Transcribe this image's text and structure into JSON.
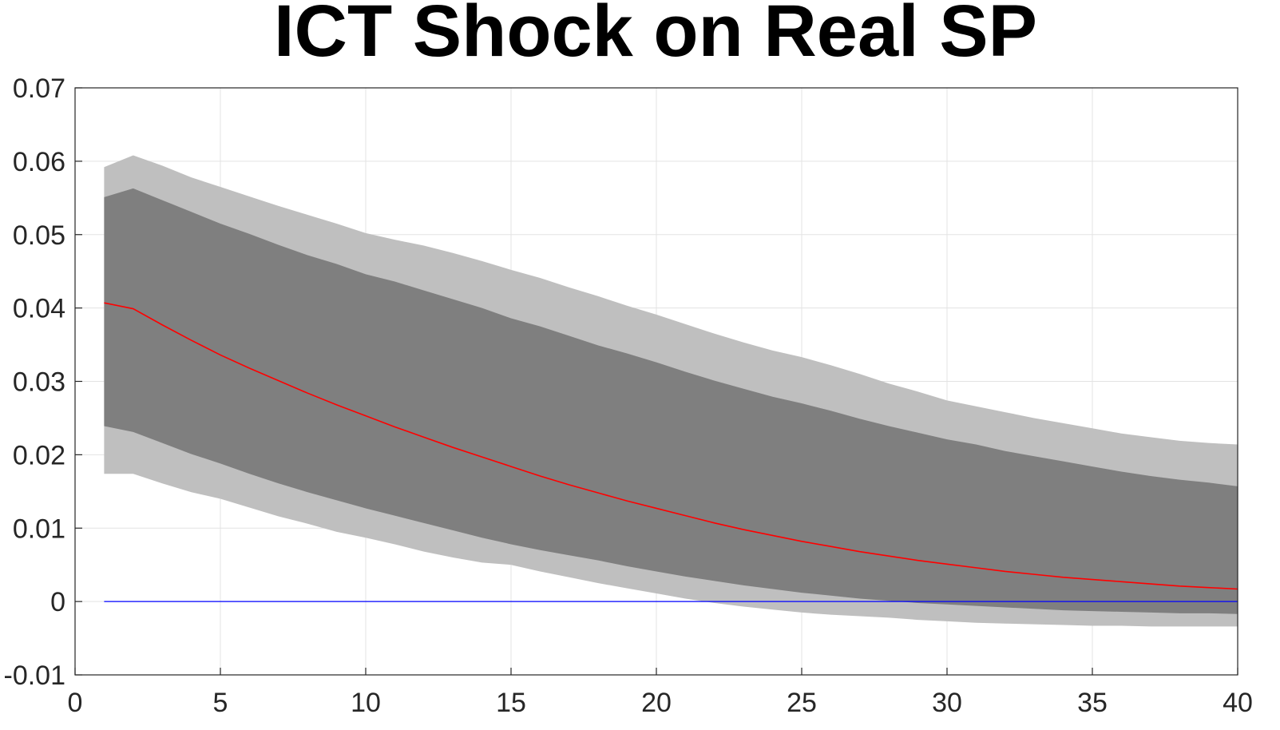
{
  "chart_data": {
    "type": "area",
    "title": "ICT Shock on Real SP",
    "xlabel": "",
    "ylabel": "",
    "xlim": [
      0,
      40
    ],
    "ylim": [
      -0.01,
      0.07
    ],
    "grid": true,
    "x_ticks": [
      0,
      5,
      10,
      15,
      20,
      25,
      30,
      35,
      40
    ],
    "x_tick_labels": [
      "0",
      "5",
      "10",
      "15",
      "20",
      "25",
      "30",
      "35",
      "40"
    ],
    "y_ticks": [
      -0.01,
      0,
      0.01,
      0.02,
      0.03,
      0.04,
      0.05,
      0.06,
      0.07
    ],
    "y_tick_labels": [
      "-0.01",
      "0",
      "0.01",
      "0.02",
      "0.03",
      "0.04",
      "0.05",
      "0.06",
      "0.07"
    ],
    "colors": {
      "outer_band": "#bfbfbf",
      "inner_band": "#7f7f7f",
      "median": "#ff0000",
      "zero_line": "#0000ff",
      "grid": "#e3e3e3",
      "axis": "#262626"
    },
    "x": [
      1,
      2,
      3,
      4,
      5,
      6,
      7,
      8,
      9,
      10,
      11,
      12,
      13,
      14,
      15,
      16,
      17,
      18,
      19,
      20,
      21,
      22,
      23,
      24,
      25,
      26,
      27,
      28,
      29,
      30,
      31,
      32,
      33,
      34,
      35,
      36,
      37,
      38,
      39,
      40
    ],
    "series": [
      {
        "role": "outer_upper",
        "values": [
          0.0592,
          0.0608,
          0.0594,
          0.0578,
          0.0565,
          0.0552,
          0.0539,
          0.0527,
          0.0515,
          0.0502,
          0.0493,
          0.0485,
          0.0475,
          0.0464,
          0.0452,
          0.0441,
          0.0428,
          0.0416,
          0.0403,
          0.0391,
          0.0378,
          0.0365,
          0.0353,
          0.0342,
          0.0333,
          0.0322,
          0.031,
          0.0297,
          0.0286,
          0.0274,
          0.0266,
          0.0258,
          0.025,
          0.0243,
          0.0236,
          0.0229,
          0.0224,
          0.0219,
          0.0216,
          0.0214
        ]
      },
      {
        "role": "inner_upper",
        "values": [
          0.0551,
          0.0563,
          0.0547,
          0.0531,
          0.0515,
          0.0501,
          0.0486,
          0.0472,
          0.046,
          0.0446,
          0.0436,
          0.0424,
          0.0412,
          0.04,
          0.0386,
          0.0375,
          0.0362,
          0.0349,
          0.0338,
          0.0326,
          0.0313,
          0.0301,
          0.029,
          0.0279,
          0.027,
          0.026,
          0.0249,
          0.0239,
          0.023,
          0.0221,
          0.0214,
          0.0205,
          0.0198,
          0.0191,
          0.0184,
          0.0177,
          0.0171,
          0.0166,
          0.0162,
          0.0157
        ]
      },
      {
        "role": "median",
        "values": [
          0.0407,
          0.0399,
          0.0377,
          0.0356,
          0.0336,
          0.0318,
          0.0301,
          0.0284,
          0.0268,
          0.0253,
          0.0238,
          0.0224,
          0.021,
          0.0197,
          0.0184,
          0.0171,
          0.0159,
          0.0148,
          0.0137,
          0.0127,
          0.0117,
          0.0107,
          0.0098,
          0.009,
          0.0082,
          0.0075,
          0.0068,
          0.0062,
          0.0056,
          0.0051,
          0.0046,
          0.0041,
          0.0037,
          0.0033,
          0.003,
          0.0027,
          0.0024,
          0.0021,
          0.0019,
          0.0017
        ]
      },
      {
        "role": "inner_lower",
        "values": [
          0.0239,
          0.0231,
          0.0216,
          0.0201,
          0.0188,
          0.0174,
          0.0161,
          0.0149,
          0.0138,
          0.0127,
          0.0117,
          0.0107,
          0.0097,
          0.0087,
          0.0078,
          0.007,
          0.0063,
          0.0056,
          0.0048,
          0.0041,
          0.0034,
          0.0028,
          0.0022,
          0.0017,
          0.0012,
          0.0008,
          0.0004,
          0.0001,
          -0.0002,
          -0.0004,
          -0.0006,
          -0.0008,
          -0.001,
          -0.0012,
          -0.0013,
          -0.0014,
          -0.0015,
          -0.0016,
          -0.0016,
          -0.0017
        ]
      },
      {
        "role": "outer_lower",
        "values": [
          0.0174,
          0.0174,
          0.0161,
          0.0149,
          0.014,
          0.0128,
          0.0116,
          0.0106,
          0.0095,
          0.0087,
          0.0078,
          0.0068,
          0.006,
          0.0053,
          0.005,
          0.0041,
          0.0033,
          0.0025,
          0.0018,
          0.0011,
          0.0004,
          -0.0002,
          -0.0007,
          -0.0011,
          -0.0015,
          -0.0018,
          -0.002,
          -0.0022,
          -0.0025,
          -0.0027,
          -0.0029,
          -0.003,
          -0.0031,
          -0.0032,
          -0.0033,
          -0.0033,
          -0.0034,
          -0.0034,
          -0.0034,
          -0.0034
        ]
      },
      {
        "role": "zero_line",
        "values": [
          0,
          0,
          0,
          0,
          0,
          0,
          0,
          0,
          0,
          0,
          0,
          0,
          0,
          0,
          0,
          0,
          0,
          0,
          0,
          0,
          0,
          0,
          0,
          0,
          0,
          0,
          0,
          0,
          0,
          0,
          0,
          0,
          0,
          0,
          0,
          0,
          0,
          0,
          0,
          0
        ]
      }
    ]
  }
}
